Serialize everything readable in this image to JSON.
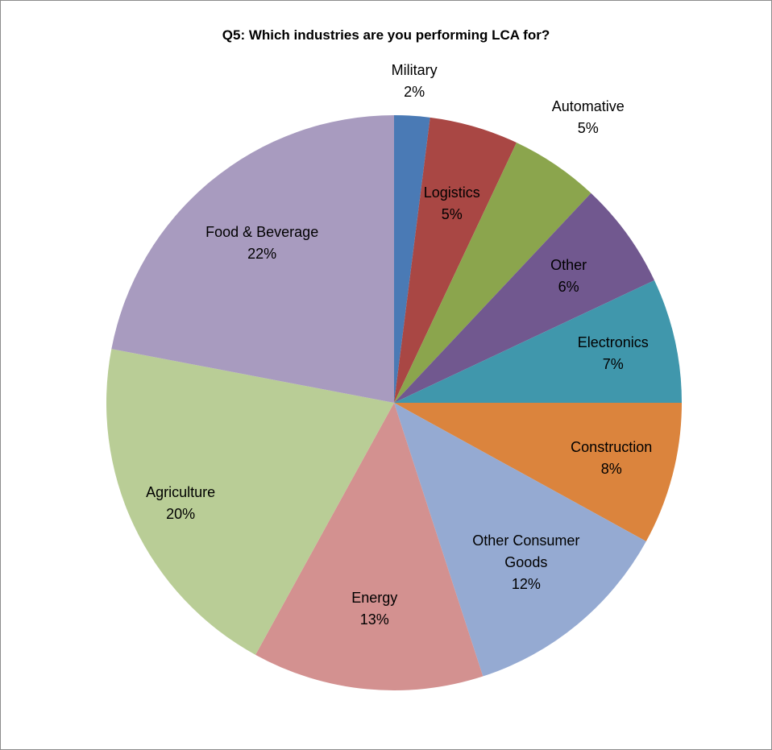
{
  "chart_data": {
    "type": "pie",
    "title": "Q5: Which industries are you performing LCA for?",
    "categories": [
      "Military",
      "Logistics",
      "Automative",
      "Other",
      "Electronics",
      "Construction",
      "Other Consumer Goods",
      "Energy",
      "Agriculture",
      "Food & Beverage"
    ],
    "values": [
      2,
      5,
      5,
      6,
      7,
      8,
      12,
      13,
      20,
      22
    ],
    "value_labels": [
      "2%",
      "5%",
      "5%",
      "6%",
      "7%",
      "8%",
      "12%",
      "13%",
      "20%",
      "22%"
    ],
    "colors": [
      "#4a7ab5",
      "#a94744",
      "#8ba54d",
      "#71588f",
      "#4097ac",
      "#db843d",
      "#95aad2",
      "#d39190",
      "#b9cd96",
      "#a89bbf"
    ]
  }
}
